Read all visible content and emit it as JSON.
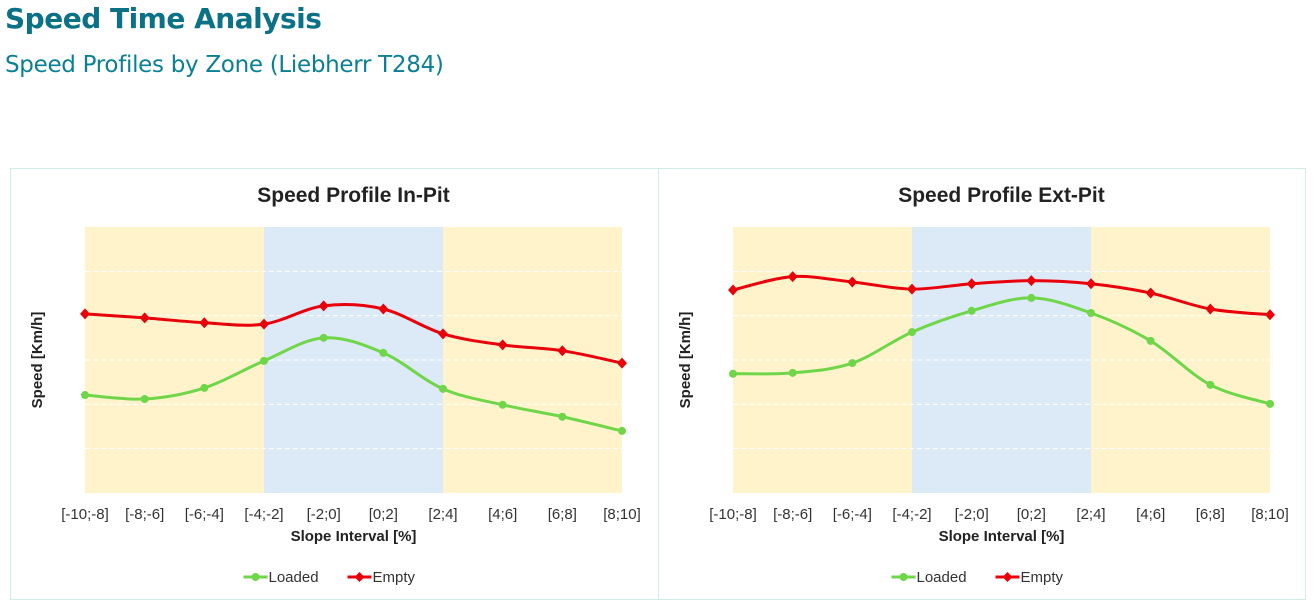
{
  "header": {
    "title": "Speed Time Analysis",
    "subtitle": "Speed Profiles by Zone (Liebherr T284)"
  },
  "colors": {
    "title": "#0a7187",
    "loaded": "#6fd64a",
    "empty": "#e8000b",
    "zone_outer": "#fff3cc",
    "zone_center": "#dce9f6",
    "grid": "#ffffff"
  },
  "chart_data": [
    {
      "type": "line",
      "title": "Speed Profile In-Pit",
      "xlabel": "Slope Interval [%]",
      "ylabel": "Speed [Km/h]",
      "ylim": [
        0,
        6
      ],
      "y_units_note": "relative gridline units (no tick labels shown)",
      "grid": true,
      "legend": "bottom",
      "categories": [
        "[-10;-8]",
        "[-8;-6]",
        "[-6;-4]",
        "[-4;-2]",
        "[-2;0]",
        "[0;2]",
        "[2;4]",
        "[4;6]",
        "[6;8]",
        "[8;10]"
      ],
      "series": [
        {
          "name": "Loaded",
          "marker": "circle",
          "values": [
            2.21,
            2.12,
            2.37,
            2.98,
            3.5,
            3.16,
            2.35,
            1.99,
            1.72,
            1.4
          ]
        },
        {
          "name": "Empty",
          "marker": "diamond",
          "values": [
            4.04,
            3.95,
            3.84,
            3.81,
            4.22,
            4.15,
            3.59,
            3.34,
            3.21,
            2.93
          ]
        }
      ]
    },
    {
      "type": "line",
      "title": "Speed Profile Ext-Pit",
      "xlabel": "Slope Interval [%]",
      "ylabel": "Speed [Km/h]",
      "ylim": [
        0,
        6
      ],
      "y_units_note": "relative gridline units (no tick labels shown)",
      "grid": true,
      "legend": "bottom",
      "categories": [
        "[-10;-8]",
        "[-8;-6]",
        "[-6;-4]",
        "[-4;-2]",
        "[-2;0]",
        "[0;2]",
        "[2;4]",
        "[4;6]",
        "[6;8]",
        "[8;10]"
      ],
      "series": [
        {
          "name": "Loaded",
          "marker": "circle",
          "values": [
            2.69,
            2.71,
            2.93,
            3.63,
            4.11,
            4.4,
            4.06,
            3.43,
            2.44,
            2.01
          ]
        },
        {
          "name": "Empty",
          "marker": "diamond",
          "values": [
            4.58,
            4.88,
            4.76,
            4.6,
            4.72,
            4.79,
            4.72,
            4.51,
            4.15,
            4.02
          ]
        }
      ]
    }
  ]
}
